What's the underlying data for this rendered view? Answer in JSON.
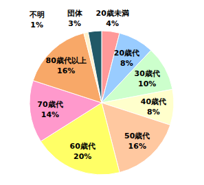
{
  "chart_data": {
    "type": "pie",
    "categories": [
      "20歳未満",
      "20歳代",
      "30歳代",
      "40歳代",
      "50歳代",
      "60歳代",
      "70歳代",
      "80歳代以上",
      "不明",
      "団体"
    ],
    "values": [
      4,
      8,
      10,
      8,
      16,
      20,
      14,
      16,
      1,
      3
    ],
    "value_labels": [
      "4%",
      "8%",
      "10%",
      "8%",
      "16%",
      "20%",
      "14%",
      "16%",
      "1%",
      "3%"
    ],
    "colors": [
      "#ff9999",
      "#99ccff",
      "#ccffcc",
      "#ffffcc",
      "#ffc8a0",
      "#ffff66",
      "#ff99cc",
      "#f8a868",
      "#fff2cc",
      "#215967"
    ],
    "data_labels": true
  }
}
